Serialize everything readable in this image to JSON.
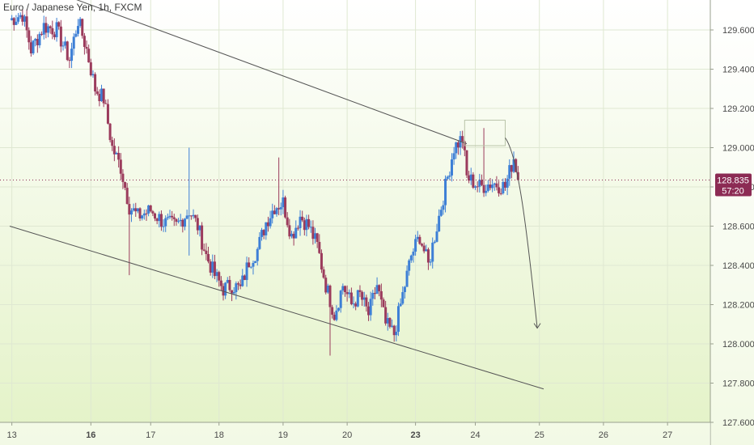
{
  "header": {
    "title": "Euro / Japanese Yen, 1h, FXCM"
  },
  "colors": {
    "up": "#3d7fd6",
    "down": "#9b3b5c",
    "line": "#555555",
    "price_tag": "#8c2b54",
    "bg_top": "#ffffff",
    "bg_bottom": "#e3f2c6"
  },
  "chart_data": {
    "type": "candlestick",
    "symbol": "Euro / Japanese Yen",
    "interval": "1h",
    "source": "FXCM",
    "ylim": [
      127.6,
      129.75
    ],
    "y_ticks": [
      "129.600",
      "129.400",
      "129.200",
      "129.000",
      "128.800",
      "128.600",
      "128.400",
      "128.200",
      "128.000",
      "127.800",
      "127.600"
    ],
    "x_ticks": [
      {
        "label": "13",
        "t": 0.5,
        "bold": false
      },
      {
        "label": "16",
        "t": 19,
        "bold": true
      },
      {
        "label": "17",
        "t": 33,
        "bold": false
      },
      {
        "label": "18",
        "t": 49,
        "bold": false
      },
      {
        "label": "19",
        "t": 64,
        "bold": false
      },
      {
        "label": "20",
        "t": 79,
        "bold": false
      },
      {
        "label": "23",
        "t": 95,
        "bold": true
      },
      {
        "label": "24",
        "t": 109,
        "bold": false
      },
      {
        "label": "25",
        "t": 124,
        "bold": false
      },
      {
        "label": "26",
        "t": 139,
        "bold": false
      },
      {
        "label": "27",
        "t": 154,
        "bold": false
      }
    ],
    "last_price": "128.835",
    "countdown": "57:20",
    "last_price_value": 128.835,
    "anchors": [
      [
        0,
        129.65
      ],
      [
        3,
        129.68
      ],
      [
        5,
        129.5
      ],
      [
        8,
        129.62
      ],
      [
        11,
        129.6
      ],
      [
        14,
        129.45
      ],
      [
        16,
        129.65
      ],
      [
        18,
        129.5
      ],
      [
        20,
        129.3
      ],
      [
        22,
        129.25
      ],
      [
        24,
        129.0
      ],
      [
        26,
        128.9
      ],
      [
        28,
        128.7
      ],
      [
        30,
        128.65
      ],
      [
        33,
        128.68
      ],
      [
        36,
        128.62
      ],
      [
        39,
        128.6
      ],
      [
        42,
        128.68
      ],
      [
        44,
        128.6
      ],
      [
        46,
        128.45
      ],
      [
        48,
        128.35
      ],
      [
        50,
        128.28
      ],
      [
        52,
        128.3
      ],
      [
        54,
        128.28
      ],
      [
        56,
        128.42
      ],
      [
        58,
        128.48
      ],
      [
        60,
        128.62
      ],
      [
        62,
        128.7
      ],
      [
        64,
        128.72
      ],
      [
        66,
        128.55
      ],
      [
        68,
        128.65
      ],
      [
        70,
        128.6
      ],
      [
        72,
        128.5
      ],
      [
        74,
        128.3
      ],
      [
        76,
        128.15
      ],
      [
        78,
        128.3
      ],
      [
        80,
        128.2
      ],
      [
        82,
        128.25
      ],
      [
        84,
        128.15
      ],
      [
        86,
        128.3
      ],
      [
        88,
        128.1
      ],
      [
        90,
        128.05
      ],
      [
        92,
        128.25
      ],
      [
        94,
        128.45
      ],
      [
        96,
        128.55
      ],
      [
        98,
        128.4
      ],
      [
        100,
        128.6
      ],
      [
        102,
        128.8
      ],
      [
        104,
        129.0
      ],
      [
        106,
        129.05
      ],
      [
        107,
        128.85
      ],
      [
        110,
        128.8
      ],
      [
        113,
        128.82
      ],
      [
        116,
        128.8
      ],
      [
        118,
        128.95
      ],
      [
        119,
        128.85
      ]
    ],
    "wick_spikes": [
      [
        42,
        129.0,
        128.45
      ],
      [
        63,
        128.95,
        128.7
      ],
      [
        75,
        128.3,
        127.94
      ],
      [
        28,
        128.75,
        128.35
      ],
      [
        111,
        129.1,
        128.78
      ]
    ],
    "upper_trendline": [
      [
        0,
        129.88
      ],
      [
        107,
        129.02
      ]
    ],
    "lower_trendline": [
      [
        0,
        128.6
      ],
      [
        125,
        127.77
      ]
    ],
    "highlight_box": {
      "t0": 106.5,
      "t1": 116,
      "p0": 129.01,
      "p1": 129.14
    },
    "projection_curve": [
      [
        116,
        129.05
      ],
      [
        119,
        128.96
      ],
      [
        121,
        128.6
      ],
      [
        123.5,
        128.08
      ]
    ]
  }
}
